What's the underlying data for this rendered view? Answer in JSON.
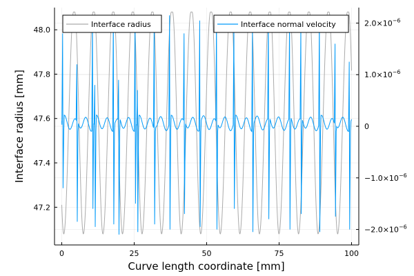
{
  "chart_data": {
    "type": "line",
    "title": "",
    "xlabel": "Curve length coordinate [mm]",
    "ylabel": "Interface radius [mm]",
    "xlim": [
      -2.5,
      102.5
    ],
    "ylim": [
      47.03,
      48.1
    ],
    "y2lim": [
      -2.3e-06,
      2.3e-06
    ],
    "x_ticks": [
      0,
      25,
      50,
      75,
      100
    ],
    "x_tick_labels": [
      "0",
      "25",
      "50",
      "75",
      "100"
    ],
    "y_ticks": [
      47.2,
      47.4,
      47.6,
      47.8,
      48.0
    ],
    "y_tick_labels": [
      "47.2",
      "47.4",
      "47.6",
      "47.8",
      "48.0"
    ],
    "y2_ticks": [
      -2e-06,
      -1e-06,
      0,
      1e-06,
      2e-06
    ],
    "y2_tick_labels": [
      {
        "mantissa": "−2.0×10",
        "exponent": "−6"
      },
      {
        "mantissa": "−1.0×10",
        "exponent": "−6"
      },
      {
        "mantissa": "0",
        "exponent": ""
      },
      {
        "mantissa": "1.0×10",
        "exponent": "−6"
      },
      {
        "mantissa": "2.0×10",
        "exponent": "−6"
      }
    ],
    "grid": true,
    "legend_placement": [
      "top-left",
      "top-right"
    ],
    "series": [
      {
        "name": "Interface radius",
        "axis": "left",
        "color": "#aaaaaa",
        "cycle_start": 0.7,
        "cycle_period": 6.75,
        "cycle_count": 15,
        "peak_value": 48.08,
        "trough_value": 47.08,
        "x_range": [
          0,
          100
        ]
      },
      {
        "name": "Interface normal velocity",
        "axis": "right",
        "color": "#009af9",
        "spikes": [
          {
            "x": 0.3,
            "high": 1.8e-06,
            "low": -1.2e-06
          },
          {
            "x": 5.2,
            "high": 1.2e-06,
            "low": -1.85e-06
          },
          {
            "x": 10.6,
            "high": 2.05e-06,
            "low": -1.6e-06
          },
          {
            "x": 11.4,
            "high": 8e-07,
            "low": -1.95e-06
          },
          {
            "x": 17.8,
            "high": 2.15e-06,
            "low": -1.9e-06
          },
          {
            "x": 19.6,
            "high": 9e-07,
            "low": -2.1e-06
          },
          {
            "x": 25.3,
            "high": 2.1e-06,
            "low": -1.5e-06
          },
          {
            "x": 26.1,
            "high": 7e-07,
            "low": -2.05e-06
          },
          {
            "x": 31.9,
            "high": 2.05e-06,
            "low": -1.9e-06
          },
          {
            "x": 37.2,
            "high": 2.15e-06,
            "low": -2e-06
          },
          {
            "x": 42.2,
            "high": 1.8e-06,
            "low": -1.7e-06
          },
          {
            "x": 47.6,
            "high": 2.05e-06,
            "low": -1.95e-06
          },
          {
            "x": 53.4,
            "high": 2.1e-06,
            "low": -2e-06
          },
          {
            "x": 59.4,
            "high": 2e-06,
            "low": -1.6e-06
          },
          {
            "x": 65.8,
            "high": 1.85e-06,
            "low": -2.05e-06
          },
          {
            "x": 71.3,
            "high": 2.1e-06,
            "low": -1.8e-06
          },
          {
            "x": 78.6,
            "high": 2e-06,
            "low": -2e-06
          },
          {
            "x": 82.5,
            "high": 1.9e-06,
            "low": -1.7e-06
          },
          {
            "x": 88.9,
            "high": 2.1e-06,
            "low": -2.05e-06
          },
          {
            "x": 94.3,
            "high": 1.6e-06,
            "low": -1.75e-06
          },
          {
            "x": 99.2,
            "high": 1.25e-06,
            "low": -2e-06
          }
        ],
        "baseline_value": 1e-07,
        "x_range": [
          0,
          100
        ]
      }
    ]
  }
}
